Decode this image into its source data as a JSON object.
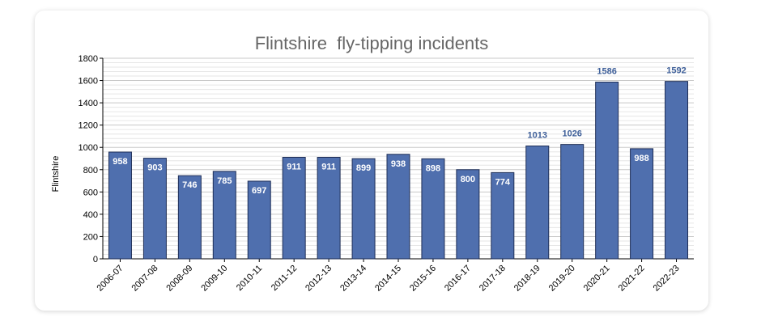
{
  "chart_data": {
    "type": "bar",
    "title": "Flintshire  fly-tipping incidents",
    "xlabel": "",
    "ylabel": "Flintshire",
    "ylim": [
      0,
      1800
    ],
    "yticks": [
      0,
      200,
      400,
      600,
      800,
      1000,
      1200,
      1400,
      1600,
      1800
    ],
    "grid": true,
    "categories": [
      "2006-07",
      "2007-08",
      "2008-09",
      "2009-10",
      "2010-11",
      "2011-12",
      "2012-13",
      "2013-14",
      "2014-15",
      "2015-16",
      "2016-17",
      "2017-18",
      "2018-19",
      "2019-20",
      "2020-21",
      "2021-22",
      "2022-23"
    ],
    "values": [
      958,
      903,
      746,
      785,
      697,
      911,
      911,
      899,
      938,
      898,
      800,
      774,
      1013,
      1026,
      1586,
      988,
      1592
    ],
    "bar_color": "#4f6fae",
    "data_label_outside_color": "#3e5f99",
    "data_label_inside_color": "#ffffff"
  }
}
